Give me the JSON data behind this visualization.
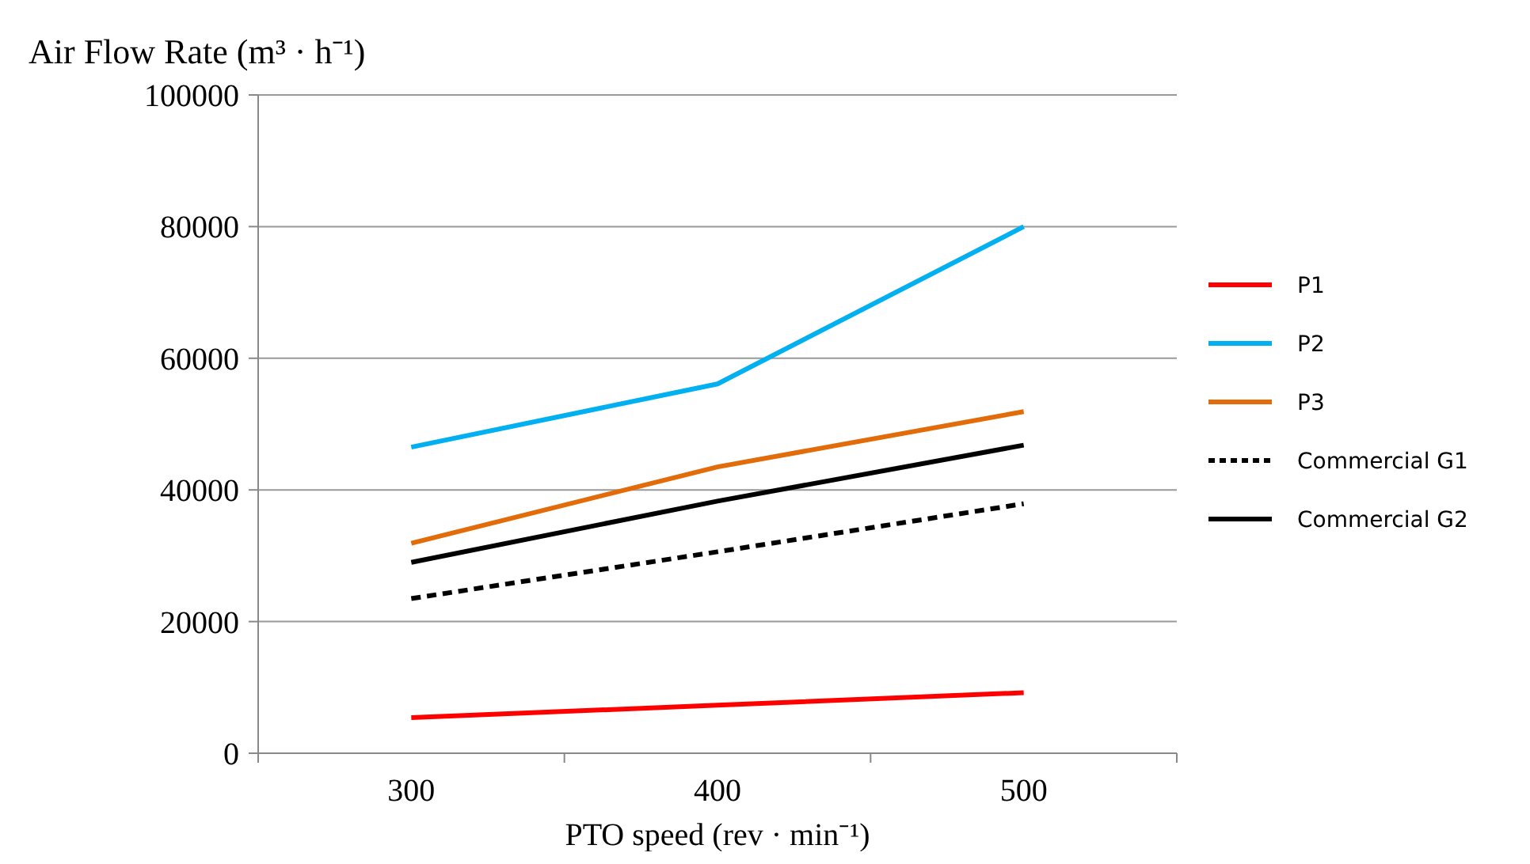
{
  "chart_data": {
    "type": "line",
    "ylabel": "Air Flow Rate (m³ · h⁻¹)",
    "xlabel": "PTO speed (rev · min⁻¹)",
    "categories": [
      "300",
      "400",
      "500"
    ],
    "ylim": [
      0,
      100000
    ],
    "yticks": [
      0,
      20000,
      40000,
      60000,
      80000,
      100000
    ],
    "grid": "y",
    "legend": "right",
    "series": [
      {
        "name": "P1",
        "color": "#ff0000",
        "values": [
          5400,
          7300,
          9200
        ]
      },
      {
        "name": "P2",
        "color": "#00b0f0",
        "values": [
          46500,
          56100,
          80000
        ]
      },
      {
        "name": "P3",
        "color": "#e36c0a",
        "values": [
          31900,
          43500,
          51900
        ]
      },
      {
        "name": "Commercial G1",
        "color": "#000000",
        "line_style": "dashed",
        "values": [
          23500,
          30600,
          37900
        ]
      },
      {
        "name": "Commercial G2",
        "color": "#000000",
        "values": [
          29000,
          38300,
          46800
        ]
      }
    ]
  }
}
